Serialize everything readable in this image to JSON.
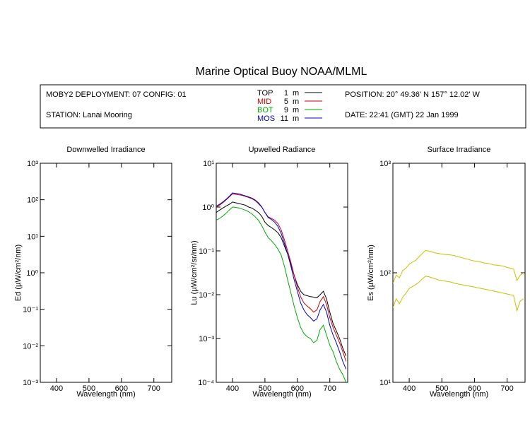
{
  "title": "Marine Optical Buoy NOAA/MLML",
  "info": {
    "deployment": "MOBY2 DEPLOYMENT: 07 CONFIG: 01",
    "station": "STATION: Lanai Mooring",
    "position": "POSITION: 20° 49.36' N   157° 12.02' W",
    "date": "DATE: 22:41 (GMT) 22 Jan 1999",
    "depth_legend": [
      {
        "name": "TOP",
        "depth": "1",
        "unit": "m",
        "color": "#000000"
      },
      {
        "name": "MID",
        "depth": "5",
        "unit": "m",
        "color": "#cc0000"
      },
      {
        "name": "BOT",
        "depth": "9",
        "unit": "m",
        "color": "#00aa00"
      },
      {
        "name": "MOS",
        "depth": "11",
        "unit": "m",
        "color": "#0000cc"
      }
    ]
  },
  "chart_data": [
    {
      "type": "line",
      "title": "Downwelled Irradiance",
      "xlabel": "Wavelength (nm)",
      "ylabel": "Ed  (µW/cm²/nm)",
      "xlim": [
        350,
        755
      ],
      "ylim": [
        0.001,
        1000
      ],
      "yscale": "log",
      "xticks": [
        "400",
        "500",
        "600",
        "700"
      ],
      "ytick_labels": [
        "10⁻³",
        "10⁻²",
        "10⁻¹",
        "10⁰",
        "10¹",
        "10²",
        "10³"
      ],
      "series": []
    },
    {
      "type": "line",
      "title": "Upwelled Radiance",
      "xlabel": "Wavelength (nm)",
      "ylabel": "Lu  (µW/cm²/sr/nm)",
      "xlim": [
        350,
        755
      ],
      "ylim": [
        0.0001,
        10
      ],
      "yscale": "log",
      "xticks": [
        "400",
        "500",
        "600",
        "700"
      ],
      "ytick_labels": [
        "10⁻⁴",
        "10⁻³",
        "10⁻²",
        "10⁻¹",
        "10⁰",
        "10¹"
      ],
      "series": [
        {
          "name": "TOP",
          "color": "#000000",
          "x": [
            350,
            360,
            370,
            380,
            390,
            400,
            410,
            420,
            430,
            440,
            450,
            460,
            470,
            480,
            490,
            500,
            510,
            520,
            530,
            540,
            550,
            560,
            570,
            580,
            590,
            600,
            610,
            620,
            630,
            640,
            650,
            660,
            670,
            680,
            690,
            700,
            710,
            720,
            730,
            740,
            750
          ],
          "y": [
            0.75,
            0.85,
            0.95,
            1.05,
            1.15,
            1.3,
            1.25,
            1.2,
            1.15,
            1.1,
            1.0,
            0.95,
            0.85,
            0.75,
            0.62,
            0.45,
            0.38,
            0.34,
            0.3,
            0.26,
            0.2,
            0.13,
            0.085,
            0.05,
            0.028,
            0.017,
            0.012,
            0.01,
            0.0095,
            0.009,
            0.0088,
            0.0085,
            0.01,
            0.012,
            0.008,
            0.004,
            0.0022,
            0.0015,
            0.001,
            0.0006,
            0.0004
          ]
        },
        {
          "name": "MID",
          "color": "#cc0000",
          "x": [
            350,
            360,
            370,
            380,
            390,
            400,
            410,
            420,
            430,
            440,
            450,
            460,
            470,
            480,
            490,
            500,
            510,
            520,
            530,
            540,
            550,
            560,
            570,
            580,
            590,
            600,
            610,
            620,
            630,
            640,
            650,
            660,
            670,
            680,
            690,
            700,
            710,
            720,
            730,
            740,
            750
          ],
          "y": [
            1.0,
            1.1,
            1.25,
            1.45,
            1.7,
            2.0,
            1.95,
            1.9,
            1.85,
            1.75,
            1.65,
            1.55,
            1.4,
            1.2,
            1.0,
            0.75,
            0.6,
            0.55,
            0.5,
            0.42,
            0.3,
            0.18,
            0.1,
            0.055,
            0.028,
            0.015,
            0.009,
            0.0065,
            0.0055,
            0.0048,
            0.004,
            0.0045,
            0.007,
            0.009,
            0.006,
            0.003,
            0.0018,
            0.0012,
            0.0008,
            0.0005,
            0.0003
          ]
        },
        {
          "name": "BOT",
          "color": "#00aa00",
          "x": [
            350,
            360,
            370,
            380,
            390,
            400,
            410,
            420,
            430,
            440,
            450,
            460,
            470,
            480,
            490,
            500,
            510,
            520,
            530,
            540,
            550,
            560,
            570,
            580,
            590,
            600,
            610,
            620,
            630,
            640,
            650,
            660,
            670,
            680,
            690,
            700,
            710,
            720,
            730,
            740,
            750
          ],
          "y": [
            0.5,
            0.55,
            0.62,
            0.72,
            0.85,
            1.0,
            0.98,
            0.95,
            0.9,
            0.85,
            0.78,
            0.7,
            0.6,
            0.5,
            0.38,
            0.27,
            0.2,
            0.17,
            0.14,
            0.11,
            0.08,
            0.045,
            0.022,
            0.011,
            0.0055,
            0.003,
            0.0018,
            0.0013,
            0.0011,
            0.001,
            0.0008,
            0.0009,
            0.0016,
            0.002,
            0.0012,
            0.0007,
            0.0005,
            0.0003,
            0.0002,
            0.00015,
            0.0001
          ]
        },
        {
          "name": "MOS",
          "color": "#0000cc",
          "x": [
            350,
            360,
            370,
            380,
            390,
            400,
            410,
            420,
            430,
            440,
            450,
            460,
            470,
            480,
            490,
            500,
            510,
            520,
            530,
            540,
            550,
            560,
            570,
            580,
            590,
            600,
            610,
            620,
            630,
            640,
            650,
            660,
            670,
            680,
            690,
            700,
            710,
            720,
            730,
            740,
            750
          ],
          "y": [
            1.05,
            1.15,
            1.3,
            1.5,
            1.75,
            2.1,
            2.05,
            2.0,
            1.9,
            1.8,
            1.7,
            1.6,
            1.45,
            1.25,
            1.02,
            0.75,
            0.58,
            0.52,
            0.45,
            0.36,
            0.25,
            0.15,
            0.085,
            0.045,
            0.022,
            0.012,
            0.0065,
            0.0045,
            0.0035,
            0.003,
            0.0025,
            0.0028,
            0.0045,
            0.006,
            0.004,
            0.002,
            0.0012,
            0.0008,
            0.0005,
            0.0003,
            0.0002
          ]
        }
      ]
    },
    {
      "type": "line",
      "title": "Surface Irradiance",
      "xlabel": "Wavelength (nm)",
      "ylabel": "Es  (µW/cm²/nm)",
      "xlim": [
        350,
        755
      ],
      "ylim": [
        10,
        1000
      ],
      "yscale": "log",
      "xticks": [
        "400",
        "500",
        "600",
        "700"
      ],
      "ytick_labels": [
        "10¹",
        "10²",
        "10³"
      ],
      "series": [
        {
          "color": "#c8c000",
          "x": [
            350,
            360,
            370,
            380,
            390,
            400,
            410,
            420,
            430,
            440,
            450,
            460,
            470,
            480,
            490,
            500,
            510,
            520,
            530,
            540,
            550,
            560,
            570,
            580,
            590,
            600,
            610,
            620,
            630,
            640,
            650,
            660,
            670,
            680,
            690,
            700,
            710,
            720,
            730,
            740,
            750
          ],
          "y": [
            80,
            95,
            90,
            105,
            110,
            120,
            125,
            130,
            140,
            150,
            160,
            158,
            155,
            152,
            150,
            148,
            147,
            146,
            145,
            143,
            140,
            138,
            135,
            133,
            130,
            128,
            127,
            125,
            123,
            122,
            120,
            118,
            117,
            116,
            115,
            112,
            110,
            108,
            85,
            95,
            100
          ]
        },
        {
          "color": "#c8c000",
          "x": [
            350,
            360,
            370,
            380,
            390,
            400,
            410,
            420,
            430,
            440,
            450,
            460,
            470,
            480,
            490,
            500,
            510,
            520,
            530,
            540,
            550,
            560,
            570,
            580,
            590,
            600,
            610,
            620,
            630,
            640,
            650,
            660,
            670,
            680,
            690,
            700,
            710,
            720,
            730,
            740,
            750
          ],
          "y": [
            48,
            58,
            52,
            60,
            65,
            72,
            75,
            78,
            82,
            88,
            93,
            92,
            90,
            88,
            86,
            85,
            84,
            83,
            82,
            80,
            79,
            78,
            77,
            76,
            75,
            74,
            73,
            72,
            71,
            70,
            69,
            68,
            67,
            66,
            65,
            64,
            63,
            62,
            45,
            55,
            58
          ]
        }
      ]
    }
  ]
}
